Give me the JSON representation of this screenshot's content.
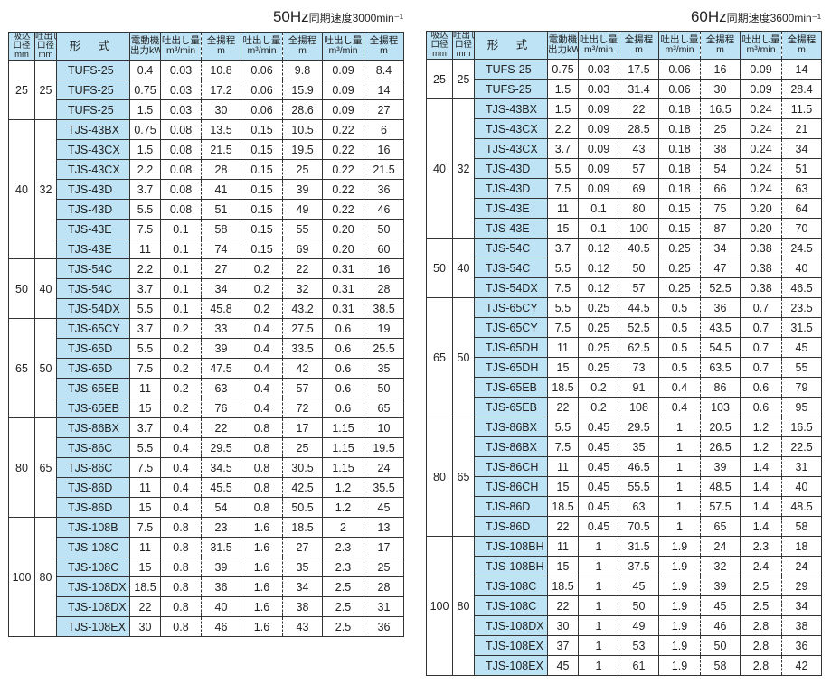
{
  "headers": {
    "suction": [
      "吸込",
      "口径",
      "mm"
    ],
    "discharge": [
      "吐出し",
      "口径",
      "mm"
    ],
    "model": "形 式",
    "motor": [
      "電動機",
      "出力kW"
    ],
    "flow": [
      "吐出し量",
      "m³/min"
    ],
    "head": [
      "全揚程",
      "m"
    ]
  },
  "tables": [
    {
      "title_hz": "50Hz",
      "title_rest": "同期速度3000min⁻¹",
      "groups": [
        {
          "suction": "25",
          "discharge": "25",
          "rows": [
            [
              "TUFS-25",
              "0.4",
              "0.03",
              "10.8",
              "0.06",
              "9.8",
              "0.09",
              "8.4"
            ],
            [
              "TUFS-25",
              "0.75",
              "0.03",
              "17.2",
              "0.06",
              "15.9",
              "0.09",
              "14"
            ],
            [
              "TUFS-25",
              "1.5",
              "0.03",
              "30",
              "0.06",
              "28.6",
              "0.09",
              "27"
            ]
          ]
        },
        {
          "suction": "40",
          "discharge": "32",
          "rows": [
            [
              "TJS-43BX",
              "0.75",
              "0.08",
              "13.5",
              "0.15",
              "10.5",
              "0.22",
              "6"
            ],
            [
              "TJS-43CX",
              "1.5",
              "0.08",
              "21.5",
              "0.15",
              "19.5",
              "0.22",
              "16"
            ],
            [
              "TJS-43CX",
              "2.2",
              "0.08",
              "28",
              "0.15",
              "25",
              "0.22",
              "21.5"
            ],
            [
              "TJS-43D",
              "3.7",
              "0.08",
              "41",
              "0.15",
              "39",
              "0.22",
              "36"
            ],
            [
              "TJS-43D",
              "5.5",
              "0.08",
              "51",
              "0.15",
              "49",
              "0.22",
              "46"
            ],
            [
              "TJS-43E",
              "7.5",
              "0.1",
              "58",
              "0.15",
              "55",
              "0.20",
              "50"
            ],
            [
              "TJS-43E",
              "11",
              "0.1",
              "74",
              "0.15",
              "69",
              "0.20",
              "60"
            ]
          ]
        },
        {
          "suction": "50",
          "discharge": "40",
          "rows": [
            [
              "TJS-54C",
              "2.2",
              "0.1",
              "27",
              "0.2",
              "22",
              "0.31",
              "16"
            ],
            [
              "TJS-54C",
              "3.7",
              "0.1",
              "34",
              "0.2",
              "32",
              "0.31",
              "28"
            ],
            [
              "TJS-54DX",
              "5.5",
              "0.1",
              "45.8",
              "0.2",
              "43.2",
              "0.31",
              "38.5"
            ]
          ]
        },
        {
          "suction": "65",
          "discharge": "50",
          "rows": [
            [
              "TJS-65CY",
              "3.7",
              "0.2",
              "33",
              "0.4",
              "27.5",
              "0.6",
              "19"
            ],
            [
              "TJS-65D",
              "5.5",
              "0.2",
              "39",
              "0.4",
              "33.5",
              "0.6",
              "25.5"
            ],
            [
              "TJS-65D",
              "7.5",
              "0.2",
              "47.5",
              "0.4",
              "42",
              "0.6",
              "35"
            ],
            [
              "TJS-65EB",
              "11",
              "0.2",
              "63",
              "0.4",
              "57",
              "0.6",
              "50"
            ],
            [
              "TJS-65EB",
              "15",
              "0.2",
              "76",
              "0.4",
              "72",
              "0.6",
              "65"
            ]
          ]
        },
        {
          "suction": "80",
          "discharge": "65",
          "rows": [
            [
              "TJS-86BX",
              "3.7",
              "0.4",
              "22",
              "0.8",
              "17",
              "1.15",
              "10"
            ],
            [
              "TJS-86C",
              "5.5",
              "0.4",
              "29.5",
              "0.8",
              "25",
              "1.15",
              "19.5"
            ],
            [
              "TJS-86C",
              "7.5",
              "0.4",
              "34.5",
              "0.8",
              "30.5",
              "1.15",
              "24"
            ],
            [
              "TJS-86D",
              "11",
              "0.4",
              "45.5",
              "0.8",
              "42.5",
              "1.2",
              "35.5"
            ],
            [
              "TJS-86D",
              "15",
              "0.4",
              "54",
              "0.8",
              "50.5",
              "1.2",
              "45"
            ]
          ]
        },
        {
          "suction": "100",
          "discharge": "80",
          "rows": [
            [
              "TJS-108B",
              "7.5",
              "0.8",
              "23",
              "1.6",
              "18.5",
              "2",
              "13"
            ],
            [
              "TJS-108C",
              "11",
              "0.8",
              "31.5",
              "1.6",
              "27",
              "2.3",
              "17"
            ],
            [
              "TJS-108C",
              "15",
              "0.8",
              "39",
              "1.6",
              "35",
              "2.3",
              "25"
            ],
            [
              "TJS-108DX",
              "18.5",
              "0.8",
              "36",
              "1.6",
              "34",
              "2.5",
              "28"
            ],
            [
              "TJS-108DX",
              "22",
              "0.8",
              "40",
              "1.6",
              "38",
              "2.5",
              "31"
            ],
            [
              "TJS-108EX",
              "30",
              "0.8",
              "46",
              "1.6",
              "43",
              "2.5",
              "36"
            ]
          ]
        }
      ]
    },
    {
      "title_hz": "60Hz",
      "title_rest": "同期速度3600min⁻¹",
      "groups": [
        {
          "suction": "25",
          "discharge": "25",
          "rows": [
            [
              "TUFS-25",
              "0.75",
              "0.03",
              "17.5",
              "0.06",
              "16",
              "0.09",
              "14"
            ],
            [
              "TUFS-25",
              "1.5",
              "0.03",
              "31.4",
              "0.06",
              "30",
              "0.09",
              "28.4"
            ]
          ]
        },
        {
          "suction": "40",
          "discharge": "32",
          "rows": [
            [
              "TJS-43BX",
              "1.5",
              "0.09",
              "22",
              "0.18",
              "16.5",
              "0.24",
              "11.5"
            ],
            [
              "TJS-43CX",
              "2.2",
              "0.09",
              "28.5",
              "0.18",
              "25",
              "0.24",
              "21"
            ],
            [
              "TJS-43CX",
              "3.7",
              "0.09",
              "43",
              "0.18",
              "38",
              "0.24",
              "34"
            ],
            [
              "TJS-43D",
              "5.5",
              "0.09",
              "57",
              "0.18",
              "54",
              "0.24",
              "51"
            ],
            [
              "TJS-43D",
              "7.5",
              "0.09",
              "69",
              "0.18",
              "66",
              "0.24",
              "63"
            ],
            [
              "TJS-43E",
              "11",
              "0.1",
              "80",
              "0.15",
              "75",
              "0.20",
              "64"
            ],
            [
              "TJS-43E",
              "15",
              "0.1",
              "100",
              "0.15",
              "87",
              "0.20",
              "70"
            ]
          ]
        },
        {
          "suction": "50",
          "discharge": "40",
          "rows": [
            [
              "TJS-54C",
              "3.7",
              "0.12",
              "40.5",
              "0.25",
              "34",
              "0.38",
              "24.5"
            ],
            [
              "TJS-54C",
              "5.5",
              "0.12",
              "50",
              "0.25",
              "47",
              "0.38",
              "40"
            ],
            [
              "TJS-54DX",
              "7.5",
              "0.12",
              "57",
              "0.25",
              "52.5",
              "0.38",
              "46.5"
            ]
          ]
        },
        {
          "suction": "65",
          "discharge": "50",
          "rows": [
            [
              "TJS-65CY",
              "5.5",
              "0.25",
              "44.5",
              "0.5",
              "36",
              "0.7",
              "23.5"
            ],
            [
              "TJS-65CY",
              "7.5",
              "0.25",
              "52.5",
              "0.5",
              "43.5",
              "0.7",
              "31.5"
            ],
            [
              "TJS-65DH",
              "11",
              "0.25",
              "62.5",
              "0.5",
              "54.5",
              "0.7",
              "45"
            ],
            [
              "TJS-65DH",
              "15",
              "0.25",
              "73",
              "0.5",
              "63.5",
              "0.7",
              "55"
            ],
            [
              "TJS-65EB",
              "18.5",
              "0.2",
              "91",
              "0.4",
              "86",
              "0.6",
              "79"
            ],
            [
              "TJS-65EB",
              "22",
              "0.2",
              "108",
              "0.4",
              "103",
              "0.6",
              "95"
            ]
          ]
        },
        {
          "suction": "80",
          "discharge": "65",
          "rows": [
            [
              "TJS-86BX",
              "5.5",
              "0.45",
              "29.5",
              "1",
              "20.5",
              "1.2",
              "16.5"
            ],
            [
              "TJS-86BX",
              "7.5",
              "0.45",
              "35",
              "1",
              "26.5",
              "1.2",
              "22.5"
            ],
            [
              "TJS-86CH",
              "11",
              "0.45",
              "46.5",
              "1",
              "39",
              "1.4",
              "31"
            ],
            [
              "TJS-86CH",
              "15",
              "0.45",
              "55.5",
              "1",
              "48.5",
              "1.4",
              "40"
            ],
            [
              "TJS-86D",
              "18.5",
              "0.45",
              "63",
              "1",
              "57.5",
              "1.4",
              "48.5"
            ],
            [
              "TJS-86D",
              "22",
              "0.45",
              "70.5",
              "1",
              "65",
              "1.4",
              "58"
            ]
          ]
        },
        {
          "suction": "100",
          "discharge": "80",
          "rows": [
            [
              "TJS-108BH",
              "11",
              "1",
              "31.5",
              "1.9",
              "24",
              "2.3",
              "18"
            ],
            [
              "TJS-108BH",
              "15",
              "1",
              "37.5",
              "1.9",
              "32",
              "2.4",
              "24"
            ],
            [
              "TJS-108C",
              "18.5",
              "1",
              "45",
              "1.9",
              "39",
              "2.5",
              "29"
            ],
            [
              "TJS-108C",
              "22",
              "1",
              "50",
              "1.9",
              "45",
              "2.5",
              "34"
            ],
            [
              "TJS-108DX",
              "30",
              "1",
              "49",
              "1.9",
              "46",
              "2.8",
              "38"
            ],
            [
              "TJS-108EX",
              "37",
              "1",
              "53",
              "1.9",
              "50",
              "2.8",
              "36"
            ],
            [
              "TJS-108EX",
              "45",
              "1",
              "61",
              "1.9",
              "58",
              "2.8",
              "42"
            ]
          ]
        }
      ]
    }
  ]
}
